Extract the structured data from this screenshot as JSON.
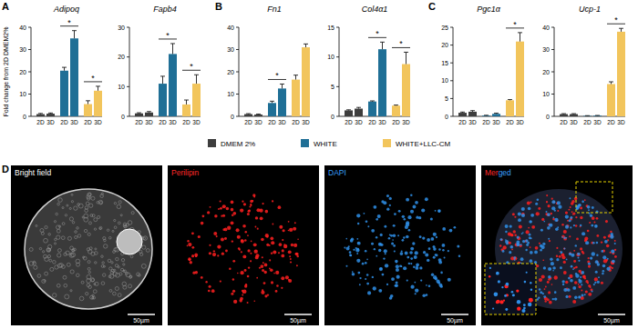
{
  "chart_data": [
    {
      "type": "bar",
      "title": "Adipoq",
      "y_label": "Fold change from 2D DMEM2%",
      "categories": [
        "2D",
        "3D",
        "2D",
        "3D",
        "2D",
        "3D"
      ],
      "values": [
        1,
        1.2,
        20.5,
        35,
        5.5,
        11.5
      ],
      "errors": [
        0.3,
        0.3,
        1.5,
        3.5,
        1.5,
        2
      ],
      "colors": [
        "#3d3d3d",
        "#3d3d3d",
        "#1f6f96",
        "#1f6f96",
        "#f2c55c",
        "#f2c55c"
      ],
      "ylim": [
        0,
        40
      ],
      "yticks": [
        0,
        10,
        20,
        30,
        40
      ],
      "annotations": [
        {
          "text": "*",
          "group": "WHITE"
        },
        {
          "text": "*",
          "group": "WHITE+LLC-CM"
        }
      ]
    },
    {
      "type": "bar",
      "title": "Fapb4",
      "categories": [
        "2D",
        "3D",
        "2D",
        "3D",
        "2D",
        "3D"
      ],
      "values": [
        1,
        1.3,
        11,
        21,
        4,
        11
      ],
      "errors": [
        0.2,
        0.3,
        2.5,
        3.5,
        1.5,
        3
      ],
      "colors": [
        "#3d3d3d",
        "#3d3d3d",
        "#1f6f96",
        "#1f6f96",
        "#f2c55c",
        "#f2c55c"
      ],
      "ylim": [
        0,
        30
      ],
      "yticks": [
        0,
        10,
        20,
        30
      ],
      "annotations": [
        {
          "text": "*",
          "group": "WHITE"
        },
        {
          "text": "*",
          "group": "WHITE+LLC-CM"
        }
      ]
    },
    {
      "type": "bar",
      "title": "Fn1",
      "categories": [
        "2D",
        "3D",
        "2D",
        "3D",
        "2D",
        "3D"
      ],
      "values": [
        1,
        0.8,
        6,
        12.5,
        16.5,
        31
      ],
      "errors": [
        0.2,
        0.2,
        0.8,
        2,
        2,
        1.5
      ],
      "colors": [
        "#3d3d3d",
        "#3d3d3d",
        "#1f6f96",
        "#1f6f96",
        "#f2c55c",
        "#f2c55c"
      ],
      "ylim": [
        0,
        40
      ],
      "yticks": [
        0,
        10,
        20,
        30,
        40
      ],
      "annotations": [
        {
          "text": "*",
          "group": "WHITE"
        }
      ]
    },
    {
      "type": "bar",
      "title": "Col4α1",
      "categories": [
        "2D",
        "3D",
        "2D",
        "3D",
        "2D",
        "3D"
      ],
      "values": [
        1,
        1.3,
        2.5,
        11.3,
        1.8,
        8.8
      ],
      "errors": [
        0.1,
        0.2,
        0.1,
        1.2,
        0.1,
        2
      ],
      "colors": [
        "#3d3d3d",
        "#3d3d3d",
        "#1f6f96",
        "#1f6f96",
        "#f2c55c",
        "#f2c55c"
      ],
      "ylim": [
        0,
        15
      ],
      "yticks": [
        0,
        5,
        10,
        15
      ],
      "annotations": [
        {
          "text": "*",
          "group": "WHITE"
        },
        {
          "text": "*",
          "group": "WHITE+LLC-CM"
        }
      ]
    },
    {
      "type": "bar",
      "title": "Pgc1α",
      "categories": [
        "2D",
        "3D",
        "2D",
        "3D",
        "2D",
        "3D"
      ],
      "values": [
        1,
        1.3,
        0.2,
        0.7,
        4.5,
        21
      ],
      "errors": [
        0.2,
        0.3,
        0.1,
        0.2,
        0.2,
        2.5
      ],
      "colors": [
        "#3d3d3d",
        "#3d3d3d",
        "#1f6f96",
        "#1f6f96",
        "#f2c55c",
        "#f2c55c"
      ],
      "ylim": [
        0,
        25
      ],
      "yticks": [
        0,
        5,
        10,
        15,
        20,
        25
      ],
      "annotations": [
        {
          "text": "*",
          "group": "WHITE+LLC-CM"
        }
      ]
    },
    {
      "type": "bar",
      "title": "Ucp-1",
      "categories": [
        "2D",
        "3D",
        "2D",
        "3D",
        "2D",
        "3D"
      ],
      "values": [
        1,
        1,
        0.2,
        0.3,
        14.5,
        38
      ],
      "errors": [
        0.2,
        0.2,
        0.1,
        0.1,
        1,
        1.5
      ],
      "colors": [
        "#3d3d3d",
        "#3d3d3d",
        "#1f6f96",
        "#1f6f96",
        "#f2c55c",
        "#f2c55c"
      ],
      "ylim": [
        0,
        40
      ],
      "yticks": [
        0,
        10,
        20,
        30,
        40
      ],
      "annotations": [
        {
          "text": "*",
          "group": "WHITE+LLC-CM"
        }
      ]
    }
  ],
  "panel_labels": [
    "A",
    "B",
    "C",
    "D"
  ],
  "legend": {
    "items": [
      {
        "name": "DMEM 2%",
        "color": "#3d3d3d"
      },
      {
        "name": "WHITE",
        "color": "#1f6f96"
      },
      {
        "name": "WHITE+LLC-CM",
        "color": "#f2c55c"
      }
    ]
  },
  "images": {
    "items": [
      {
        "title": "Bright field",
        "scale_bar": "50µm"
      },
      {
        "title": "Perilipin",
        "scale_bar": "50µm"
      },
      {
        "title": "DAPI",
        "scale_bar": "50µm"
      },
      {
        "title": "Merged",
        "scale_bar": "50µm"
      }
    ]
  }
}
